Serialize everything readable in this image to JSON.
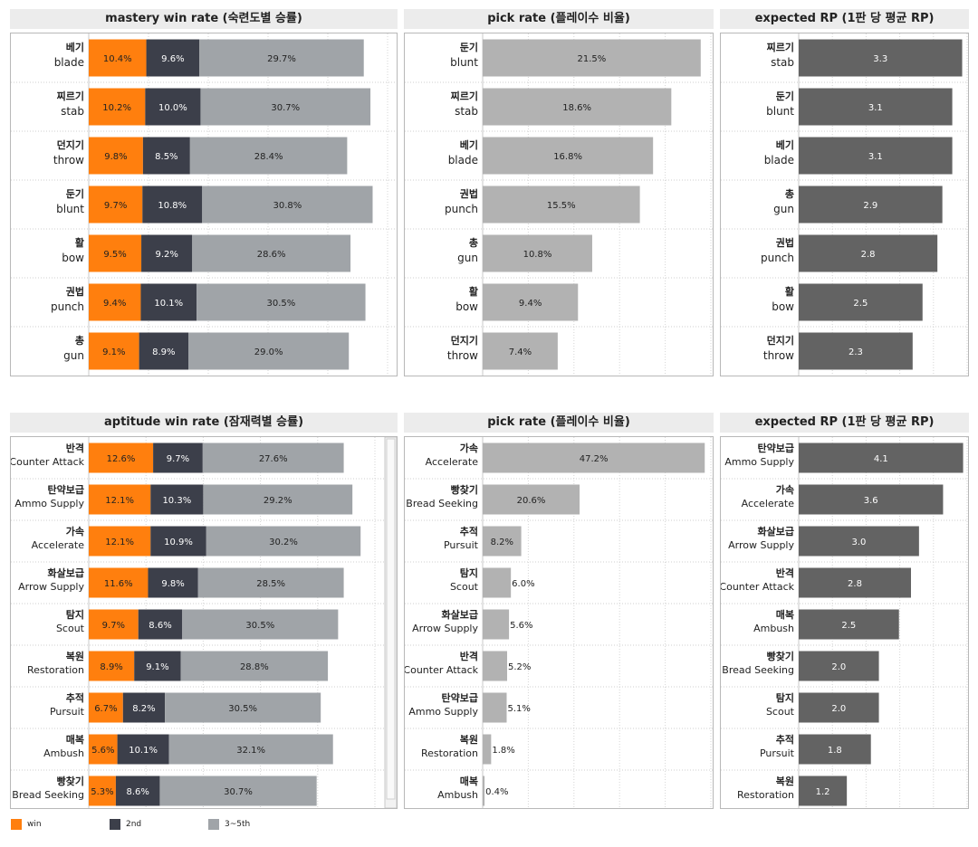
{
  "legend": {
    "items": [
      {
        "label": "win",
        "color": "#ff7f0e"
      },
      {
        "label": "2nd",
        "color": "#3c3f4a"
      },
      {
        "label": "3~5th",
        "color": "#a0a4a8"
      }
    ]
  },
  "chart_data": [
    {
      "type": "bar",
      "title": "mastery win rate (숙련도별 승률)",
      "stacked": true,
      "orientation": "horizontal",
      "categories": [
        [
          "베기",
          "blade"
        ],
        [
          "찌르기",
          "stab"
        ],
        [
          "던지기",
          "throw"
        ],
        [
          "둔기",
          "blunt"
        ],
        [
          "활",
          "bow"
        ],
        [
          "권법",
          "punch"
        ],
        [
          "총",
          "gun"
        ]
      ],
      "series": [
        {
          "name": "win",
          "color": "#ff7f0e",
          "values": [
            10.4,
            10.2,
            9.8,
            9.7,
            9.5,
            9.4,
            9.1
          ],
          "labels": [
            "10.4%",
            "10.2%",
            "9.8%",
            "9.7%",
            "9.5%",
            "9.4%",
            "9.1%"
          ]
        },
        {
          "name": "2nd",
          "color": "#3c3f4a",
          "values": [
            9.6,
            10.0,
            8.5,
            10.8,
            9.2,
            10.1,
            8.9
          ],
          "labels": [
            "9.6%",
            "10.0%",
            "8.5%",
            "10.8%",
            "9.2%",
            "10.1%",
            "8.9%"
          ]
        },
        {
          "name": "3~5th",
          "color": "#a0a4a8",
          "values": [
            29.7,
            30.7,
            28.4,
            30.8,
            28.6,
            30.5,
            29.0
          ],
          "labels": [
            "29.7%",
            "30.7%",
            "28.4%",
            "30.8%",
            "28.6%",
            "30.5%",
            "29.0%"
          ]
        }
      ],
      "xlim": [
        0,
        54
      ],
      "grid": true
    },
    {
      "type": "bar",
      "title": "pick rate (플레이수 비율)",
      "orientation": "horizontal",
      "categories": [
        [
          "둔기",
          "blunt"
        ],
        [
          "찌르기",
          "stab"
        ],
        [
          "베기",
          "blade"
        ],
        [
          "권법",
          "punch"
        ],
        [
          "총",
          "gun"
        ],
        [
          "활",
          "bow"
        ],
        [
          "던지기",
          "throw"
        ]
      ],
      "series": [
        {
          "color": "#b2b2b2",
          "values": [
            21.5,
            18.6,
            16.8,
            15.5,
            10.8,
            9.4,
            7.4
          ],
          "labels": [
            "21.5%",
            "18.6%",
            "16.8%",
            "15.5%",
            "10.8%",
            "9.4%",
            "7.4%"
          ]
        }
      ],
      "xlim": [
        0,
        22.5
      ],
      "grid": true
    },
    {
      "type": "bar",
      "title": "expected RP (1판 당 평균 RP)",
      "orientation": "horizontal",
      "categories": [
        [
          "찌르기",
          "stab"
        ],
        [
          "둔기",
          "blunt"
        ],
        [
          "베기",
          "blade"
        ],
        [
          "총",
          "gun"
        ],
        [
          "권법",
          "punch"
        ],
        [
          "활",
          "bow"
        ],
        [
          "던지기",
          "throw"
        ]
      ],
      "series": [
        {
          "color": "#636363",
          "values": [
            3.3,
            3.1,
            3.1,
            2.9,
            2.8,
            2.5,
            2.3
          ],
          "labels": [
            "3.3",
            "3.1",
            "3.1",
            "2.9",
            "2.8",
            "2.5",
            "2.3"
          ]
        }
      ],
      "xlim": [
        0,
        3.4
      ],
      "grid": true
    },
    {
      "type": "bar",
      "title": "aptitude win rate (잠재력별 승률)",
      "stacked": true,
      "orientation": "horizontal",
      "categories": [
        [
          "반격",
          "Counter Attack"
        ],
        [
          "탄약보급",
          "Ammo Supply"
        ],
        [
          "가속",
          "Accelerate"
        ],
        [
          "화살보급",
          "Arrow Supply"
        ],
        [
          "탐지",
          "Scout"
        ],
        [
          "복원",
          "Restoration"
        ],
        [
          "추적",
          "Pursuit"
        ],
        [
          "매복",
          "Ambush"
        ],
        [
          "빵찾기",
          "Bread Seeking"
        ]
      ],
      "series": [
        {
          "name": "win",
          "color": "#ff7f0e",
          "values": [
            12.6,
            12.1,
            12.1,
            11.6,
            9.7,
            8.9,
            6.7,
            5.6,
            5.3
          ],
          "labels": [
            "12.6%",
            "12.1%",
            "12.1%",
            "11.6%",
            "9.7%",
            "8.9%",
            "6.7%",
            "5.6%",
            "5.3%"
          ]
        },
        {
          "name": "2nd",
          "color": "#3c3f4a",
          "values": [
            9.7,
            10.3,
            10.9,
            9.8,
            8.6,
            9.1,
            8.2,
            10.1,
            8.6
          ],
          "labels": [
            "9.7%",
            "10.3%",
            "10.9%",
            "9.8%",
            "8.6%",
            "9.1%",
            "8.2%",
            "10.1%",
            "8.6%"
          ]
        },
        {
          "name": "3~5th",
          "color": "#a0a4a8",
          "values": [
            27.6,
            29.2,
            30.2,
            28.5,
            30.5,
            28.8,
            30.5,
            32.1,
            30.7
          ],
          "labels": [
            "27.6%",
            "29.2%",
            "30.2%",
            "28.5%",
            "30.5%",
            "28.8%",
            "30.5%",
            "32.1%",
            "30.7%"
          ]
        }
      ],
      "xlim": [
        0,
        56
      ],
      "grid": true
    },
    {
      "type": "bar",
      "title": "pick rate (플레이수 비율)",
      "orientation": "horizontal",
      "categories": [
        [
          "가속",
          "Accelerate"
        ],
        [
          "빵찾기",
          "Bread Seeking"
        ],
        [
          "추적",
          "Pursuit"
        ],
        [
          "탐지",
          "Scout"
        ],
        [
          "화살보급",
          "Arrow Supply"
        ],
        [
          "반격",
          "Counter Attack"
        ],
        [
          "탄약보급",
          "Ammo Supply"
        ],
        [
          "복원",
          "Restoration"
        ],
        [
          "매복",
          "Ambush"
        ]
      ],
      "series": [
        {
          "color": "#b2b2b2",
          "values": [
            47.2,
            20.6,
            8.2,
            6.0,
            5.6,
            5.2,
            5.1,
            1.8,
            0.4
          ],
          "labels": [
            "47.2%",
            "20.6%",
            "8.2%",
            "6.0%",
            "5.6%",
            "5.2%",
            "5.1%",
            "1.8%",
            "0.4%"
          ]
        }
      ],
      "xlim": [
        0,
        48.5
      ],
      "grid": true
    },
    {
      "type": "bar",
      "title": "expected RP (1판 당 평균 RP)",
      "orientation": "horizontal",
      "categories": [
        [
          "탄약보급",
          "Ammo Supply"
        ],
        [
          "가속",
          "Accelerate"
        ],
        [
          "화살보급",
          "Arrow Supply"
        ],
        [
          "반격",
          "Counter Attack"
        ],
        [
          "매복",
          "Ambush"
        ],
        [
          "빵찾기",
          "Bread Seeking"
        ],
        [
          "탐지",
          "Scout"
        ],
        [
          "추적",
          "Pursuit"
        ],
        [
          "복원",
          "Restoration"
        ]
      ],
      "series": [
        {
          "color": "#636363",
          "values": [
            4.1,
            3.6,
            3.0,
            2.8,
            2.5,
            2.0,
            2.0,
            1.8,
            1.2
          ],
          "labels": [
            "4.1",
            "3.6",
            "3.0",
            "2.8",
            "2.5",
            "2.0",
            "2.0",
            "1.8",
            "1.2"
          ]
        }
      ],
      "xlim": [
        0,
        4.2
      ],
      "grid": true
    }
  ]
}
